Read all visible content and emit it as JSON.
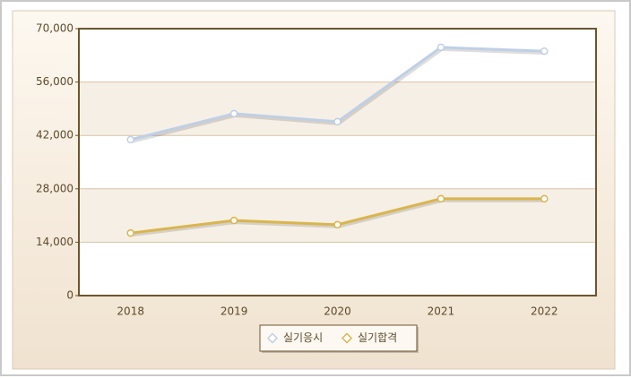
{
  "chart_data": {
    "type": "line",
    "categories": [
      "2018",
      "2019",
      "2020",
      "2021",
      "2022"
    ],
    "series": [
      {
        "name": "실기응시",
        "color": "#bfcfe6",
        "values": [
          40900,
          47700,
          45600,
          65100,
          64100
        ]
      },
      {
        "name": "실기합격",
        "color": "#d9b54e",
        "values": [
          16400,
          19700,
          18600,
          25400,
          25400
        ]
      }
    ],
    "ylim": [
      0,
      70000
    ],
    "yticks": [
      0,
      {
        "value": 14000,
        "label": "14,000"
      },
      {
        "value": 28000,
        "label": "28,000"
      },
      {
        "value": 42000,
        "label": "42,000"
      },
      {
        "value": 56000,
        "label": "56,000"
      },
      {
        "value": 70000,
        "label": "70,000"
      }
    ],
    "grid": true,
    "legend": "bottom"
  }
}
